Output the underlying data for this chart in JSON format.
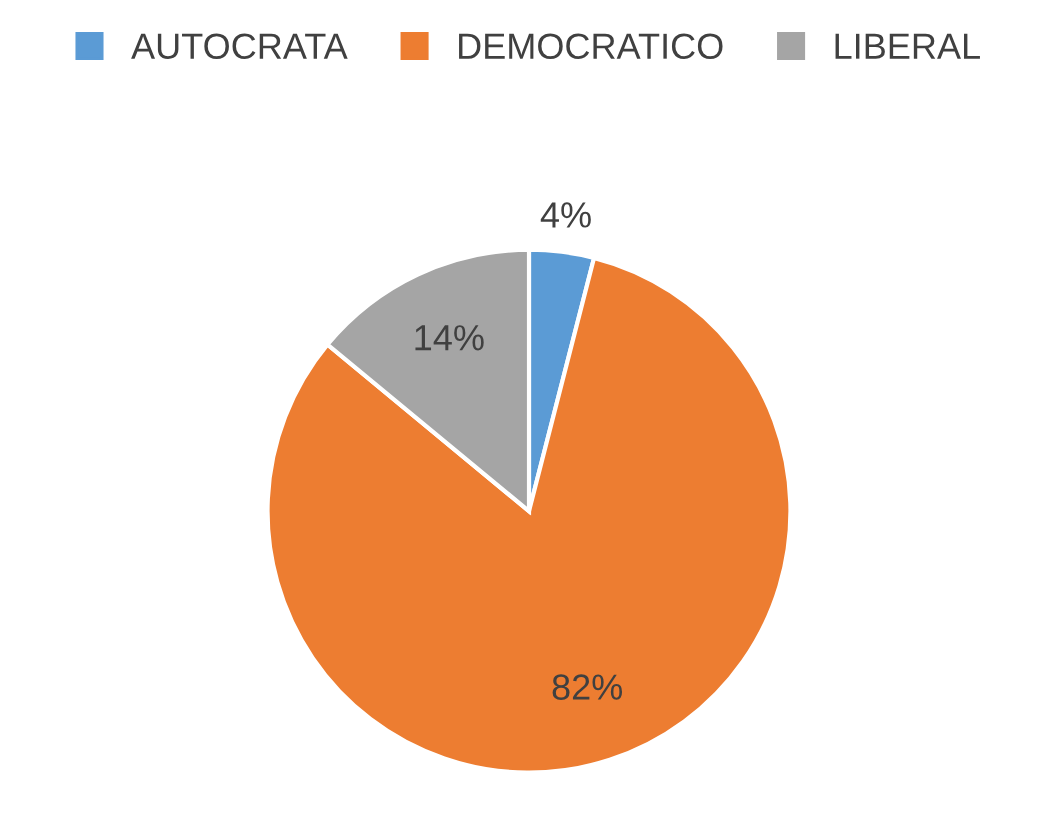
{
  "chart_data": {
    "type": "pie",
    "categories": [
      "AUTOCRATA",
      "DEMOCRATICO",
      "LIBERAL"
    ],
    "values": [
      4,
      82,
      14
    ],
    "colors": [
      "#5b9bd5",
      "#ed7d31",
      "#a5a5a5"
    ],
    "value_labels": [
      "4%",
      "82%",
      "14%"
    ],
    "legend": "top"
  }
}
